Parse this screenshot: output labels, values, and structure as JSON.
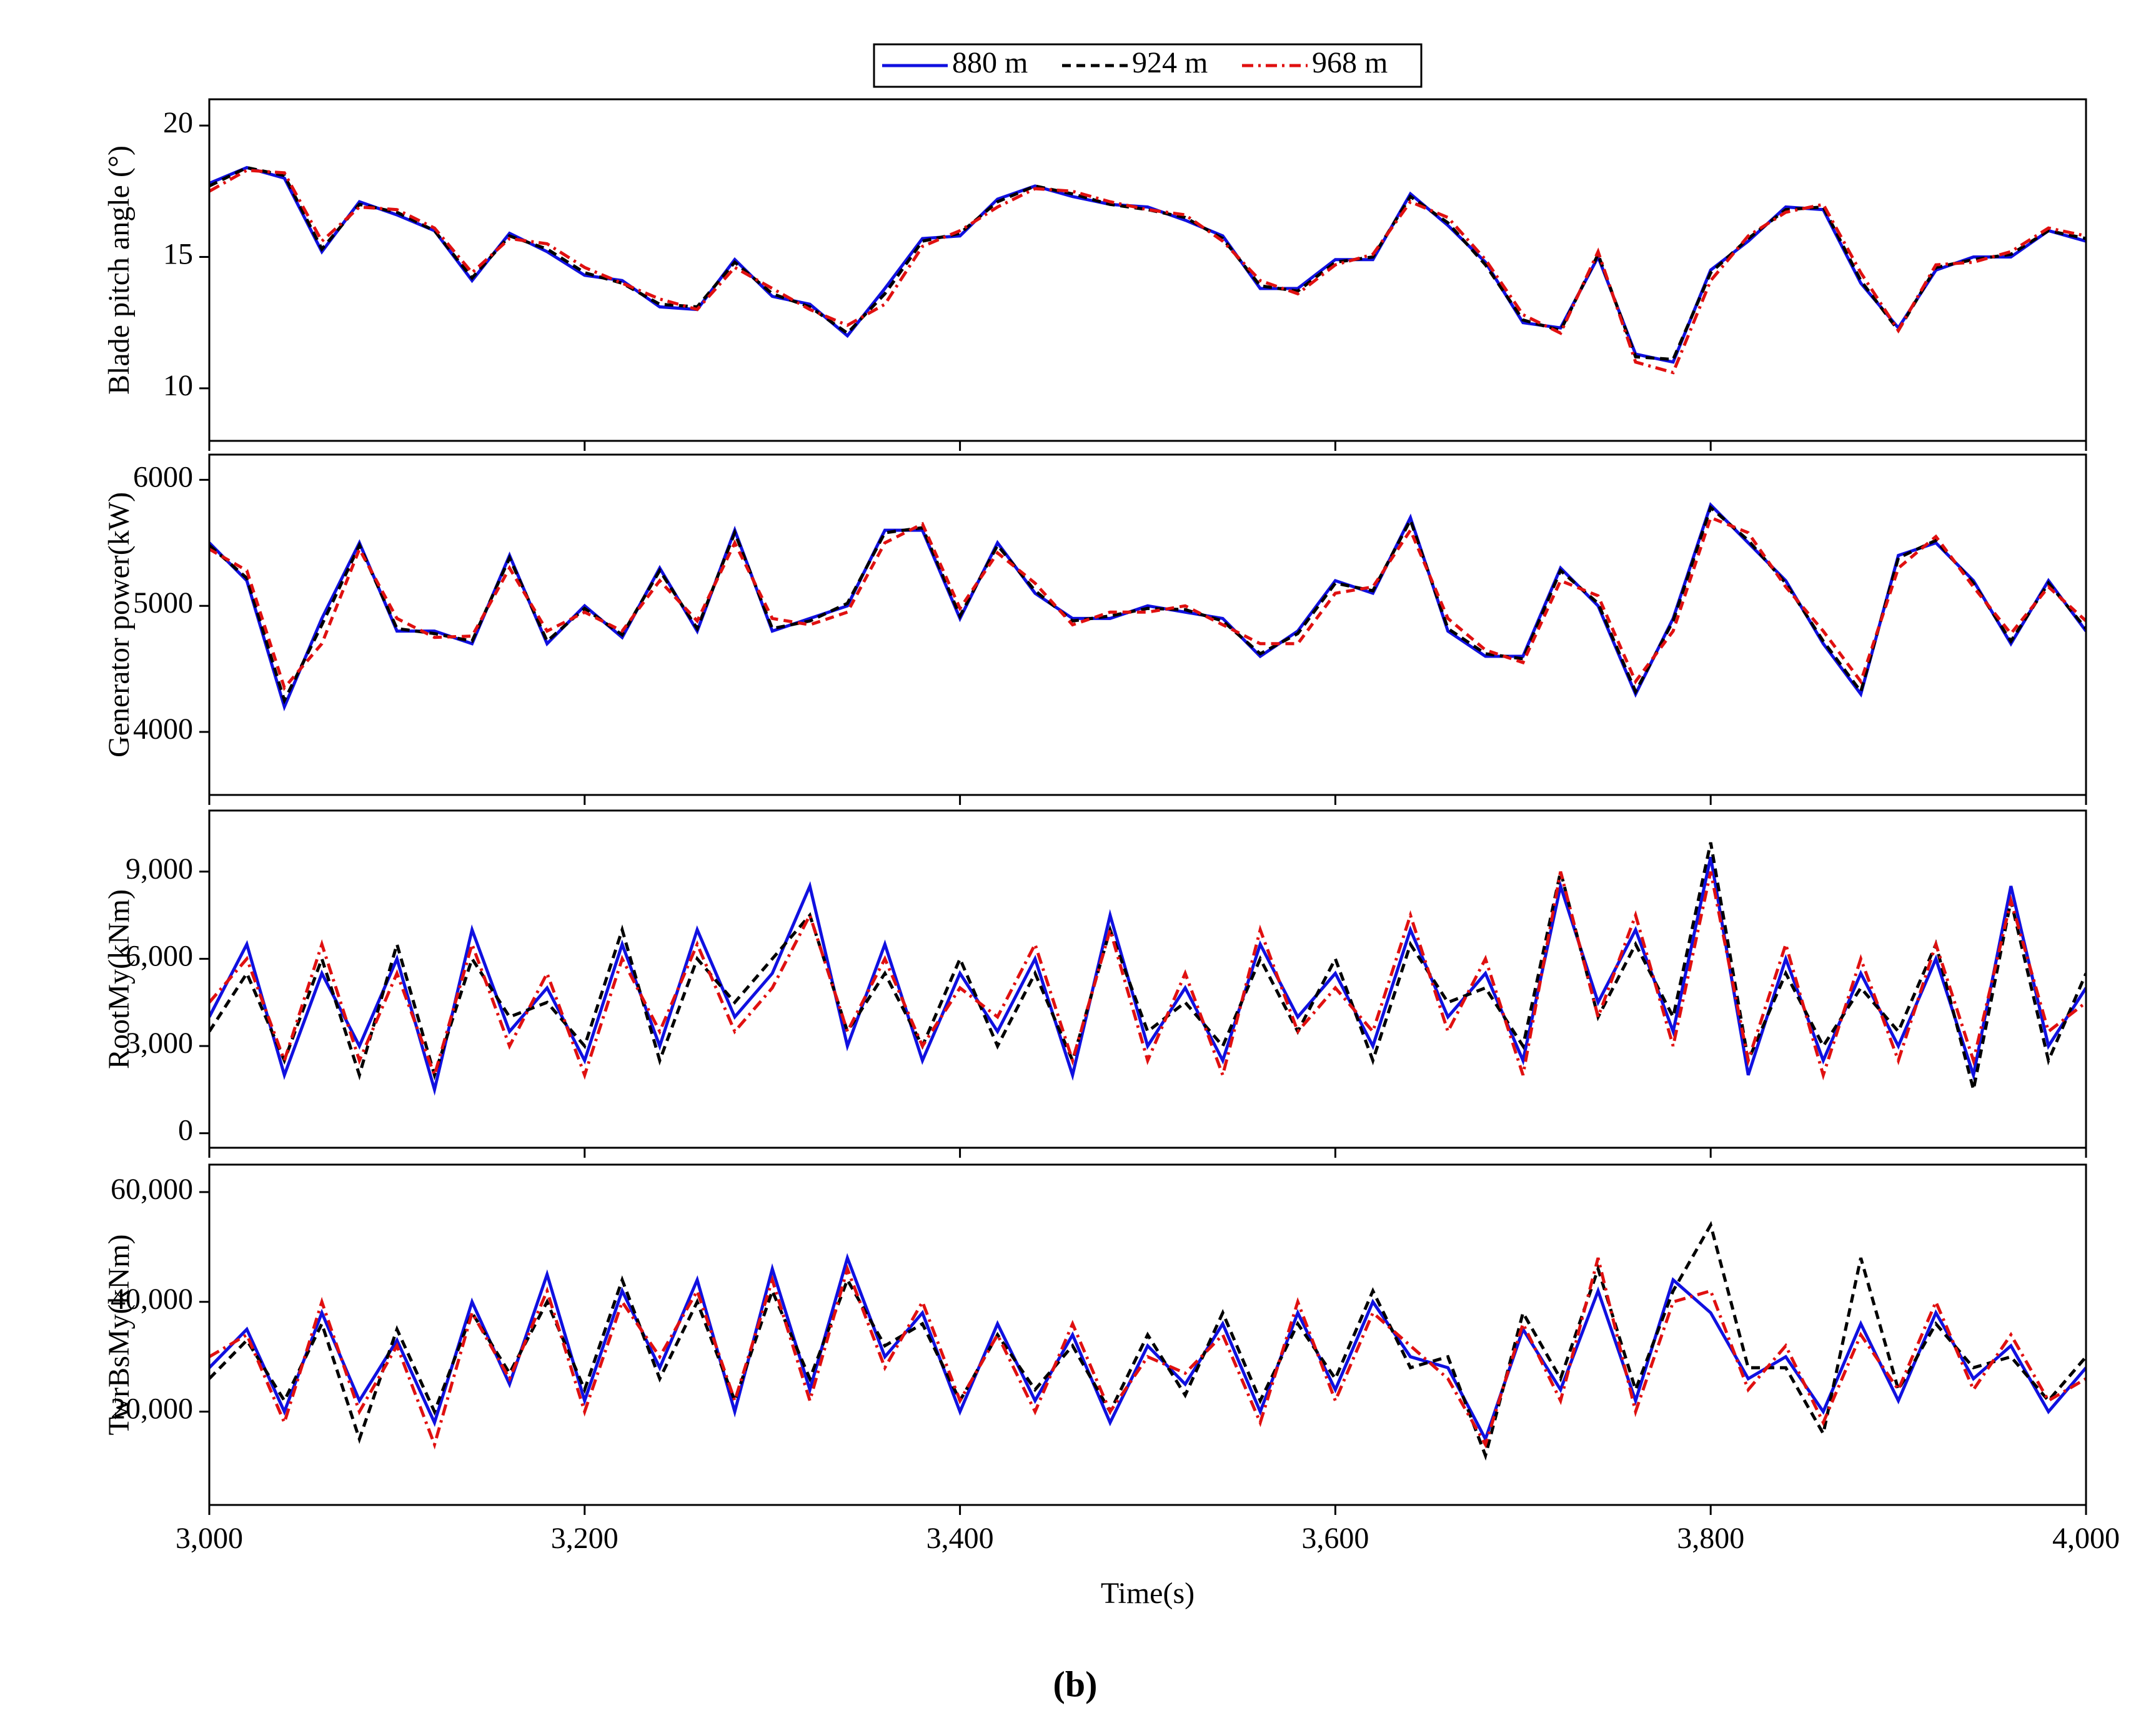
{
  "caption": "(b)",
  "chart_data": [
    {
      "type": "line",
      "ylabel": "Blade pitch angle (°)",
      "x": [
        3000,
        3020,
        3040,
        3060,
        3080,
        3100,
        3120,
        3140,
        3160,
        3180,
        3200,
        3220,
        3240,
        3260,
        3280,
        3300,
        3320,
        3340,
        3360,
        3380,
        3400,
        3420,
        3440,
        3460,
        3480,
        3500,
        3520,
        3540,
        3560,
        3580,
        3600,
        3620,
        3640,
        3660,
        3680,
        3700,
        3720,
        3740,
        3760,
        3780,
        3800,
        3820,
        3840,
        3860,
        3880,
        3900,
        3920,
        3940,
        3960,
        3980,
        4000
      ],
      "series": [
        {
          "name": "880 m",
          "color": "#1010e0",
          "linestyle": "solid",
          "values": [
            17.8,
            18.4,
            18.0,
            15.2,
            17.1,
            16.6,
            16.0,
            14.1,
            15.9,
            15.2,
            14.3,
            14.1,
            13.1,
            13.0,
            14.9,
            13.5,
            13.2,
            12.0,
            13.8,
            15.7,
            15.8,
            17.2,
            17.7,
            17.3,
            17.0,
            16.9,
            16.4,
            15.8,
            13.8,
            13.8,
            14.9,
            14.9,
            17.4,
            16.2,
            14.8,
            12.5,
            12.3,
            15.0,
            11.3,
            11.0,
            14.5,
            15.6,
            16.9,
            16.8,
            14.0,
            12.3,
            14.5,
            15.0,
            15.0,
            16.0,
            15.6
          ]
        },
        {
          "name": "924 m",
          "color": "#000000",
          "linestyle": "dashed",
          "values": [
            17.7,
            18.4,
            18.1,
            15.3,
            17.0,
            16.7,
            16.0,
            14.2,
            15.8,
            15.3,
            14.4,
            14.0,
            13.2,
            13.1,
            14.8,
            13.6,
            13.1,
            12.1,
            13.6,
            15.6,
            15.9,
            17.1,
            17.7,
            17.4,
            17.0,
            16.8,
            16.5,
            15.7,
            13.9,
            13.7,
            14.8,
            15.0,
            17.3,
            16.3,
            14.7,
            12.6,
            12.2,
            15.1,
            11.2,
            11.1,
            14.4,
            15.7,
            16.8,
            16.9,
            14.1,
            12.2,
            14.6,
            14.9,
            15.1,
            16.0,
            15.7
          ]
        },
        {
          "name": "968 m",
          "color": "#e01010",
          "linestyle": "dashdot",
          "values": [
            17.5,
            18.3,
            18.2,
            15.6,
            16.9,
            16.8,
            16.1,
            14.4,
            15.7,
            15.5,
            14.6,
            14.0,
            13.4,
            13.0,
            14.6,
            13.8,
            13.0,
            12.4,
            13.2,
            15.4,
            16.0,
            16.9,
            17.6,
            17.5,
            17.1,
            16.8,
            16.6,
            15.6,
            14.1,
            13.6,
            14.7,
            15.1,
            17.1,
            16.5,
            14.9,
            12.8,
            12.1,
            15.2,
            11.0,
            10.6,
            14.1,
            15.8,
            16.7,
            17.0,
            14.4,
            12.2,
            14.7,
            14.8,
            15.2,
            16.1,
            15.8
          ]
        }
      ],
      "xlim": [
        3000,
        4000
      ],
      "xticks": [
        3000,
        3200,
        3400,
        3600,
        3800,
        4000
      ],
      "xtick_labels": false,
      "ylim": [
        8,
        21
      ],
      "yticks": [
        10,
        15,
        20
      ]
    },
    {
      "type": "line",
      "ylabel": "Generator power(kW)",
      "x": [
        3000,
        3020,
        3040,
        3060,
        3080,
        3100,
        3120,
        3140,
        3160,
        3180,
        3200,
        3220,
        3240,
        3260,
        3280,
        3300,
        3320,
        3340,
        3360,
        3380,
        3400,
        3420,
        3440,
        3460,
        3480,
        3500,
        3520,
        3540,
        3560,
        3580,
        3600,
        3620,
        3640,
        3660,
        3680,
        3700,
        3720,
        3740,
        3760,
        3780,
        3800,
        3820,
        3840,
        3860,
        3880,
        3900,
        3920,
        3940,
        3960,
        3980,
        4000
      ],
      "series": [
        {
          "name": "880 m",
          "color": "#1010e0",
          "linestyle": "solid",
          "values": [
            5500,
            5200,
            4200,
            4900,
            5500,
            4800,
            4800,
            4700,
            5400,
            4700,
            5000,
            4750,
            5300,
            4800,
            5600,
            4800,
            4900,
            5000,
            5600,
            5600,
            4900,
            5500,
            5100,
            4900,
            4900,
            5000,
            4950,
            4900,
            4600,
            4800,
            5200,
            5100,
            5700,
            4800,
            4600,
            4600,
            5300,
            5000,
            4300,
            4900,
            5800,
            5500,
            5200,
            4700,
            4300,
            5400,
            5500,
            5200,
            4700,
            5200,
            4800
          ]
        },
        {
          "name": "924 m",
          "color": "#000000",
          "linestyle": "dashed",
          "values": [
            5480,
            5220,
            4250,
            4850,
            5480,
            4820,
            4780,
            4720,
            5380,
            4720,
            4980,
            4770,
            5280,
            4820,
            5580,
            4820,
            4880,
            5020,
            5580,
            5620,
            4920,
            5480,
            5120,
            4880,
            4920,
            4980,
            4970,
            4880,
            4620,
            4780,
            5180,
            5120,
            5680,
            4820,
            4620,
            4580,
            5280,
            5020,
            4320,
            4880,
            5780,
            5520,
            5180,
            4720,
            4320,
            5380,
            5520,
            5180,
            4720,
            5180,
            4820
          ]
        },
        {
          "name": "968 m",
          "color": "#e01010",
          "linestyle": "dashed",
          "values": [
            5450,
            5280,
            4350,
            4700,
            5450,
            4900,
            4750,
            4760,
            5300,
            4800,
            4950,
            4800,
            5200,
            4880,
            5500,
            4900,
            4850,
            4950,
            5500,
            5650,
            4980,
            5420,
            5180,
            4850,
            4950,
            4950,
            5000,
            4850,
            4700,
            4700,
            5100,
            5150,
            5600,
            4900,
            4650,
            4550,
            5200,
            5080,
            4400,
            4800,
            5700,
            5580,
            5150,
            4800,
            4400,
            5300,
            5550,
            5150,
            4780,
            5150,
            4880
          ]
        }
      ],
      "xlim": [
        3000,
        4000
      ],
      "xticks": [
        3000,
        3200,
        3400,
        3600,
        3800,
        4000
      ],
      "xtick_labels": false,
      "ylim": [
        3500,
        6200
      ],
      "yticks": [
        4000,
        5000,
        6000
      ]
    },
    {
      "type": "line",
      "ylabel": "RootMy(kNm)",
      "x": [
        3000,
        3020,
        3040,
        3060,
        3080,
        3100,
        3120,
        3140,
        3160,
        3180,
        3200,
        3220,
        3240,
        3260,
        3280,
        3300,
        3320,
        3340,
        3360,
        3380,
        3400,
        3420,
        3440,
        3460,
        3480,
        3500,
        3520,
        3540,
        3560,
        3580,
        3600,
        3620,
        3640,
        3660,
        3680,
        3700,
        3720,
        3740,
        3760,
        3780,
        3800,
        3820,
        3840,
        3860,
        3880,
        3900,
        3920,
        3940,
        3960,
        3980,
        4000
      ],
      "series": [
        {
          "name": "880 m",
          "color": "#1010e0",
          "linestyle": "solid",
          "values": [
            4000,
            6500,
            2000,
            5500,
            3000,
            6000,
            1500,
            7000,
            3500,
            5000,
            2500,
            6500,
            3000,
            7000,
            4000,
            5500,
            8500,
            3000,
            6500,
            2500,
            5500,
            3500,
            6000,
            2000,
            7500,
            3000,
            5000,
            2500,
            6500,
            4000,
            5500,
            3000,
            7000,
            4000,
            5500,
            2500,
            8500,
            4500,
            7000,
            3500,
            9500,
            2000,
            6000,
            2500,
            5500,
            3000,
            6000,
            2000,
            8500,
            3000,
            5000
          ]
        },
        {
          "name": "924 m",
          "color": "#000000",
          "linestyle": "dashed",
          "values": [
            3500,
            5500,
            2500,
            6000,
            2000,
            6500,
            2000,
            6000,
            4000,
            4500,
            3000,
            7000,
            2500,
            6000,
            4500,
            6000,
            7500,
            3500,
            5500,
            3000,
            6000,
            3000,
            5500,
            2500,
            7000,
            3500,
            4500,
            3000,
            6000,
            3500,
            6000,
            2500,
            6500,
            4500,
            5000,
            3000,
            9000,
            4000,
            6500,
            4000,
            10000,
            2500,
            5500,
            3000,
            5000,
            3500,
            6500,
            1500,
            8000,
            2500,
            5500
          ]
        },
        {
          "name": "968 m",
          "color": "#e01010",
          "linestyle": "dashdot",
          "values": [
            4500,
            6000,
            2500,
            6500,
            2500,
            5500,
            2000,
            6500,
            3000,
            5500,
            2000,
            6000,
            3500,
            6500,
            3500,
            5000,
            7500,
            3500,
            6000,
            3000,
            5000,
            4000,
            6500,
            2500,
            7000,
            2500,
            5500,
            2000,
            7000,
            3500,
            5000,
            3500,
            7500,
            3500,
            6000,
            2000,
            9000,
            4000,
            7500,
            3000,
            9000,
            2500,
            6500,
            2000,
            6000,
            2500,
            6500,
            2500,
            8000,
            3500,
            4500
          ]
        }
      ],
      "xlim": [
        3000,
        4000
      ],
      "xticks": [
        3000,
        3200,
        3400,
        3600,
        3800,
        4000
      ],
      "xtick_labels": false,
      "ylim": [
        -500,
        11100
      ],
      "yticks": [
        0,
        {
          "value": 3000,
          "label": "3,000"
        },
        {
          "value": 6000,
          "label": "6,000"
        },
        {
          "value": 9000,
          "label": "9,000"
        }
      ]
    },
    {
      "type": "line",
      "ylabel": "TwrBsMy(kNm)",
      "xlabel": "Time(s)",
      "x": [
        3000,
        3020,
        3040,
        3060,
        3080,
        3100,
        3120,
        3140,
        3160,
        3180,
        3200,
        3220,
        3240,
        3260,
        3280,
        3300,
        3320,
        3340,
        3360,
        3380,
        3400,
        3420,
        3440,
        3460,
        3480,
        3500,
        3520,
        3540,
        3560,
        3580,
        3600,
        3620,
        3640,
        3660,
        3680,
        3700,
        3720,
        3740,
        3760,
        3780,
        3800,
        3820,
        3840,
        3860,
        3880,
        3900,
        3920,
        3940,
        3960,
        3980,
        4000
      ],
      "series": [
        {
          "name": "880 m",
          "color": "#1010e0",
          "linestyle": "solid",
          "values": [
            28000,
            35000,
            20000,
            38000,
            22000,
            33000,
            18000,
            40000,
            25000,
            45000,
            22000,
            42000,
            28000,
            44000,
            20000,
            46000,
            24000,
            48000,
            30000,
            38000,
            20000,
            36000,
            22000,
            34000,
            18000,
            32000,
            25000,
            36000,
            20000,
            38000,
            24000,
            40000,
            30000,
            28000,
            15000,
            35000,
            24000,
            42000,
            22000,
            44000,
            38000,
            26000,
            30000,
            20000,
            36000,
            22000,
            38000,
            26000,
            32000,
            20000,
            28000
          ]
        },
        {
          "name": "924 m",
          "color": "#000000",
          "linestyle": "dashed",
          "values": [
            26000,
            33000,
            22000,
            36000,
            15000,
            35000,
            20000,
            38000,
            27000,
            40000,
            24000,
            44000,
            26000,
            40000,
            22000,
            42000,
            26000,
            44000,
            32000,
            36000,
            22000,
            34000,
            24000,
            32000,
            20000,
            34000,
            23000,
            38000,
            22000,
            36000,
            26000,
            42000,
            28000,
            30000,
            12000,
            38000,
            26000,
            46000,
            24000,
            42000,
            54000,
            28000,
            28000,
            16000,
            48000,
            24000,
            36000,
            28000,
            30000,
            22000,
            30000
          ]
        },
        {
          "name": "968 m",
          "color": "#e01010",
          "linestyle": "dashdot",
          "values": [
            30000,
            34000,
            18000,
            40000,
            20000,
            32000,
            14000,
            38000,
            26000,
            42000,
            20000,
            40000,
            30000,
            42000,
            22000,
            44000,
            22000,
            46000,
            28000,
            40000,
            22000,
            34000,
            20000,
            36000,
            20000,
            30000,
            27000,
            34000,
            18000,
            40000,
            22000,
            38000,
            32000,
            26000,
            14000,
            36000,
            22000,
            48000,
            20000,
            40000,
            42000,
            24000,
            32000,
            18000,
            34000,
            24000,
            40000,
            24000,
            34000,
            22000,
            26000
          ]
        }
      ],
      "xlim": [
        3000,
        4000
      ],
      "xticks": [
        {
          "value": 3000,
          "label": "3,000"
        },
        {
          "value": 3200,
          "label": "3,200"
        },
        {
          "value": 3400,
          "label": "3,400"
        },
        {
          "value": 3600,
          "label": "3,600"
        },
        {
          "value": 3800,
          "label": "3,800"
        },
        {
          "value": 4000,
          "label": "4,000"
        }
      ],
      "xtick_labels": true,
      "ylim": [
        3000,
        65000
      ],
      "yticks": [
        {
          "value": 20000,
          "label": "20,000"
        },
        {
          "value": 40000,
          "label": "40,000"
        },
        {
          "value": 60000,
          "label": "60,000"
        }
      ]
    }
  ]
}
